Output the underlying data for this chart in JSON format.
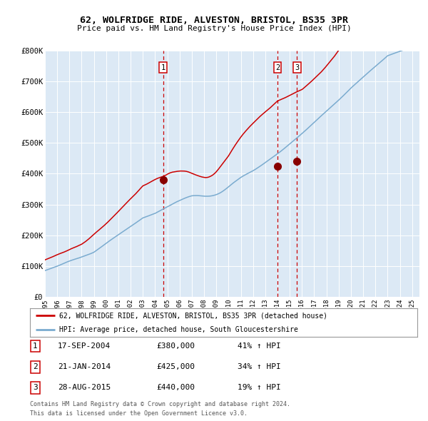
{
  "title": "62, WOLFRIDGE RIDE, ALVESTON, BRISTOL, BS35 3PR",
  "subtitle": "Price paid vs. HM Land Registry's House Price Index (HPI)",
  "bg_color": "#dce9f5",
  "plot_bg_color": "#dce9f5",
  "red_line_color": "#cc0000",
  "blue_line_color": "#7aabcf",
  "marker_color": "#880000",
  "vline_color": "#cc0000",
  "ylim": [
    0,
    800000
  ],
  "yticks": [
    0,
    100000,
    200000,
    300000,
    400000,
    500000,
    600000,
    700000,
    800000
  ],
  "ytick_labels": [
    "£0",
    "£100K",
    "£200K",
    "£300K",
    "£400K",
    "£500K",
    "£600K",
    "£700K",
    "£800K"
  ],
  "xstart_year": 1995,
  "xend_year": 2025,
  "sale1_date": "17-SEP-2004",
  "sale1_price": 380000,
  "sale1_pct": "41%",
  "sale2_date": "21-JAN-2014",
  "sale2_price": 425000,
  "sale2_pct": "34%",
  "sale3_date": "28-AUG-2015",
  "sale3_price": 440000,
  "sale3_pct": "19%",
  "legend_label_red": "62, WOLFRIDGE RIDE, ALVESTON, BRISTOL, BS35 3PR (detached house)",
  "legend_label_blue": "HPI: Average price, detached house, South Gloucestershire",
  "footer1": "Contains HM Land Registry data © Crown copyright and database right 2024.",
  "footer2": "This data is licensed under the Open Government Licence v3.0."
}
